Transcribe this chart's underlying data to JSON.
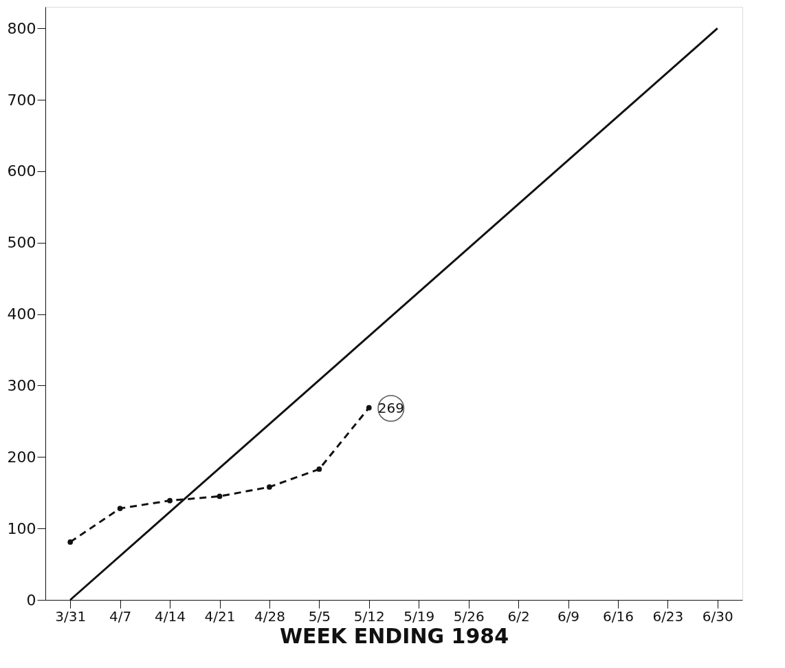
{
  "chart_data": {
    "type": "line",
    "xlabel": "WEEK ENDING 1984",
    "categories": [
      "3/31",
      "4/7",
      "4/14",
      "4/21",
      "4/28",
      "5/5",
      "5/12",
      "5/19",
      "5/26",
      "6/2",
      "6/9",
      "6/16",
      "6/23",
      "6/30"
    ],
    "series": [
      {
        "color": "#111111",
        "x": [
          "3/31",
          "6/30"
        ],
        "values": [
          0,
          800
        ],
        "line_style": "solid",
        "marker": "none"
      },
      {
        "color": "#111111",
        "x": [
          "3/31",
          "4/7",
          "4/14",
          "4/21",
          "4/28",
          "5/5",
          "5/12"
        ],
        "values": [
          81,
          128,
          139,
          145,
          158,
          183,
          269
        ],
        "line_style": "dashed",
        "marker": "circle"
      }
    ],
    "ylim": [
      0,
      830
    ],
    "yticks": [
      0,
      100,
      200,
      300,
      400,
      500,
      600,
      700,
      800
    ],
    "grid": false,
    "legend": false,
    "annotations": [
      {
        "text": "269",
        "x": "5/12",
        "y": 269
      }
    ]
  }
}
